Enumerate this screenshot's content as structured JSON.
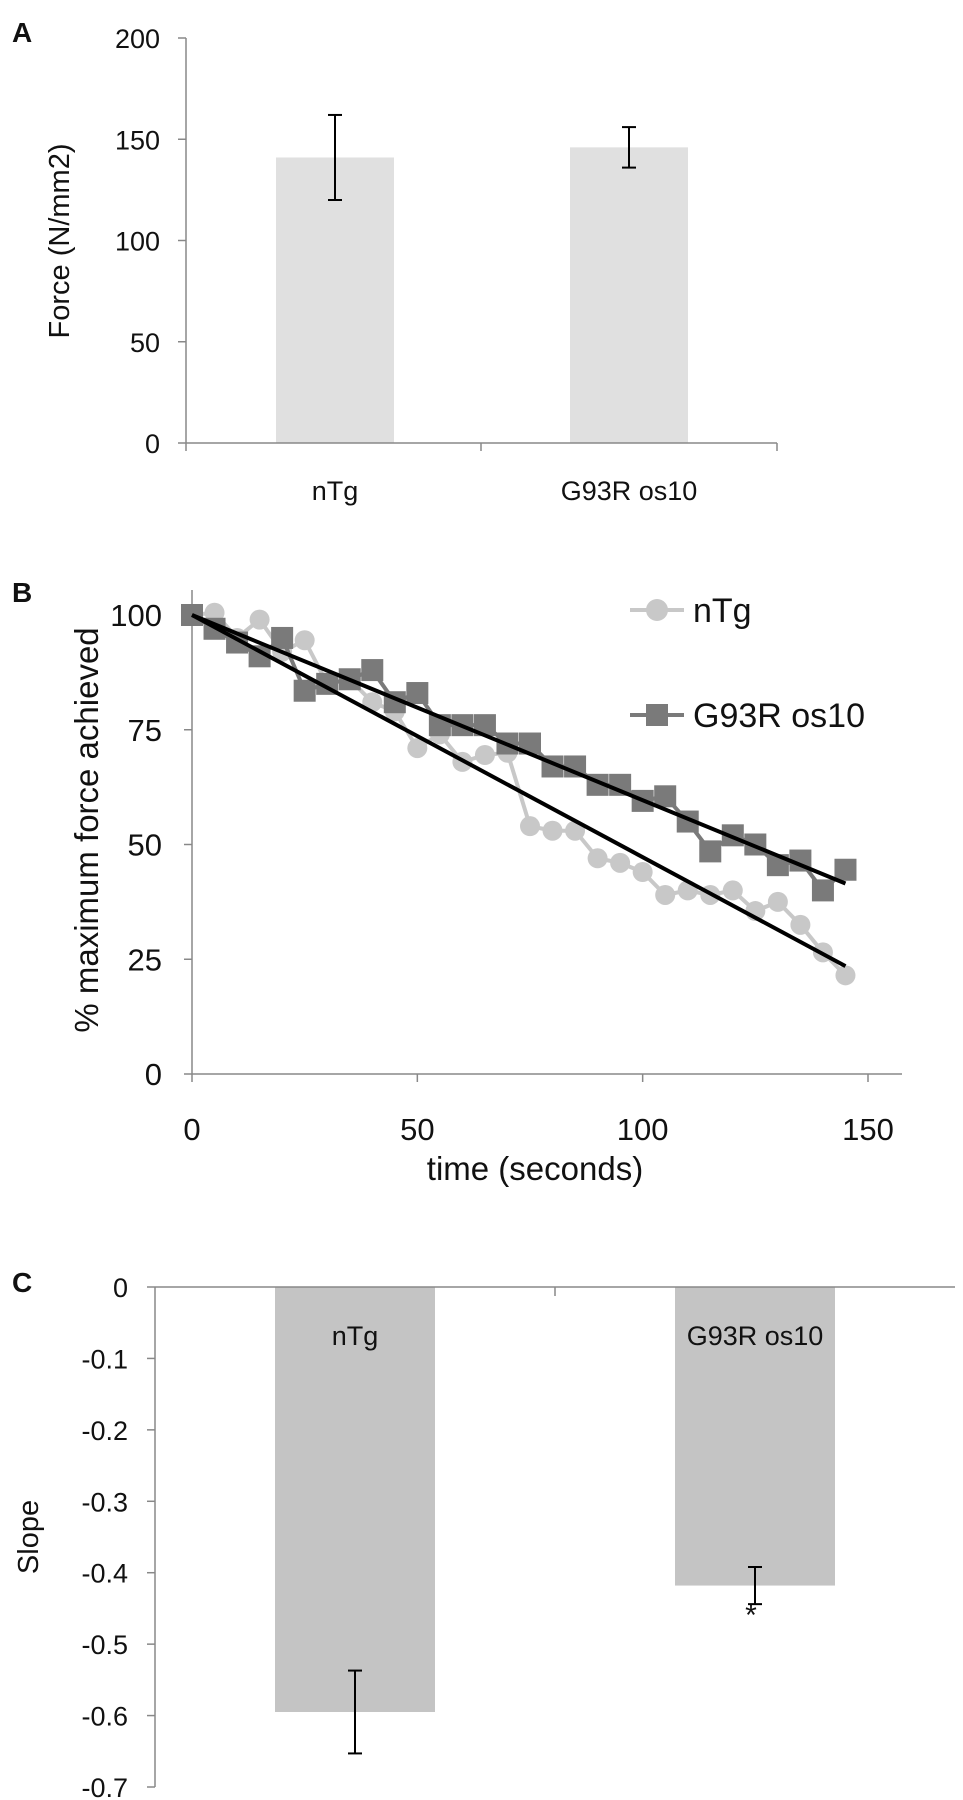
{
  "panels": [
    {
      "letter": "A",
      "chart_data": {
        "type": "bar",
        "categories": [
          "nTg",
          "G93R os10"
        ],
        "values": [
          141,
          146
        ],
        "error": [
          21,
          10
        ],
        "ylabel": "Force (N/mm2)",
        "xlabel": "",
        "ylim": [
          0,
          200
        ],
        "yticks": [
          0,
          50,
          100,
          150,
          200
        ],
        "bar_color": "#e0e0e0",
        "grid": false
      }
    },
    {
      "letter": "B",
      "chart_data": {
        "type": "line",
        "xlabel": "time (seconds)",
        "ylabel": "% maximum force achieved",
        "xlim": [
          0,
          160
        ],
        "ylim": [
          0,
          105
        ],
        "xticks": [
          0,
          50,
          100,
          150
        ],
        "yticks": [
          0,
          25,
          50,
          75,
          100
        ],
        "legend_position": "top-right",
        "grid": false,
        "series": [
          {
            "name": "nTg",
            "marker": "circle",
            "color": "#c8c8c8",
            "x": [
              0,
              5,
              10,
              15,
              20,
              25,
              30,
              35,
              40,
              45,
              50,
              55,
              60,
              65,
              70,
              75,
              80,
              85,
              90,
              95,
              100,
              105,
              110,
              115,
              120,
              125,
              130,
              135,
              140,
              145
            ],
            "y": [
              100,
              100.5,
              95,
              99,
              92,
              94.5,
              85,
              86,
              81,
              79,
              71,
              74,
              68,
              69.5,
              70,
              54,
              53,
              53,
              47,
              46,
              44,
              39,
              40,
              39,
              40,
              35.5,
              37.5,
              32.5,
              26.5,
              21.5
            ]
          },
          {
            "name": "G93R os10",
            "marker": "square",
            "color": "#7a7a7a",
            "x": [
              0,
              5,
              10,
              15,
              20,
              25,
              30,
              35,
              40,
              45,
              50,
              55,
              60,
              65,
              70,
              75,
              80,
              85,
              90,
              95,
              100,
              105,
              110,
              115,
              120,
              125,
              130,
              135,
              140,
              145
            ],
            "y": [
              100,
              97,
              94,
              91,
              95,
              83.5,
              85,
              86,
              88,
              81,
              83,
              76,
              76,
              76,
              72,
              72,
              67,
              67,
              63,
              63,
              59.5,
              60.5,
              55,
              48.5,
              52,
              50,
              45.5,
              46.5,
              40,
              44.5
            ]
          }
        ],
        "fits": [
          {
            "for": "nTg",
            "x": [
              0,
              145
            ],
            "y": [
              100,
              23.5
            ]
          },
          {
            "for": "G93R os10",
            "x": [
              0,
              145
            ],
            "y": [
              100,
              41.5
            ]
          }
        ]
      }
    },
    {
      "letter": "C",
      "chart_data": {
        "type": "bar",
        "categories": [
          "nTg",
          "G93R os10"
        ],
        "values": [
          -0.595,
          -0.418
        ],
        "error": [
          0.058,
          0.026
        ],
        "ylabel": "Slope",
        "xlabel": "",
        "ylim": [
          -0.7,
          0
        ],
        "yticks": [
          0,
          -0.1,
          -0.2,
          -0.3,
          -0.4,
          -0.5,
          -0.6,
          -0.7
        ],
        "tick_labels": [
          "0",
          "-0.1",
          "-0.2",
          "-0.3",
          "-0.4",
          "-0.5",
          "-0.6",
          "-0.7"
        ],
        "annotations": [
          "",
          "*"
        ],
        "bar_color": "#c4c4c4",
        "grid": false
      }
    }
  ]
}
